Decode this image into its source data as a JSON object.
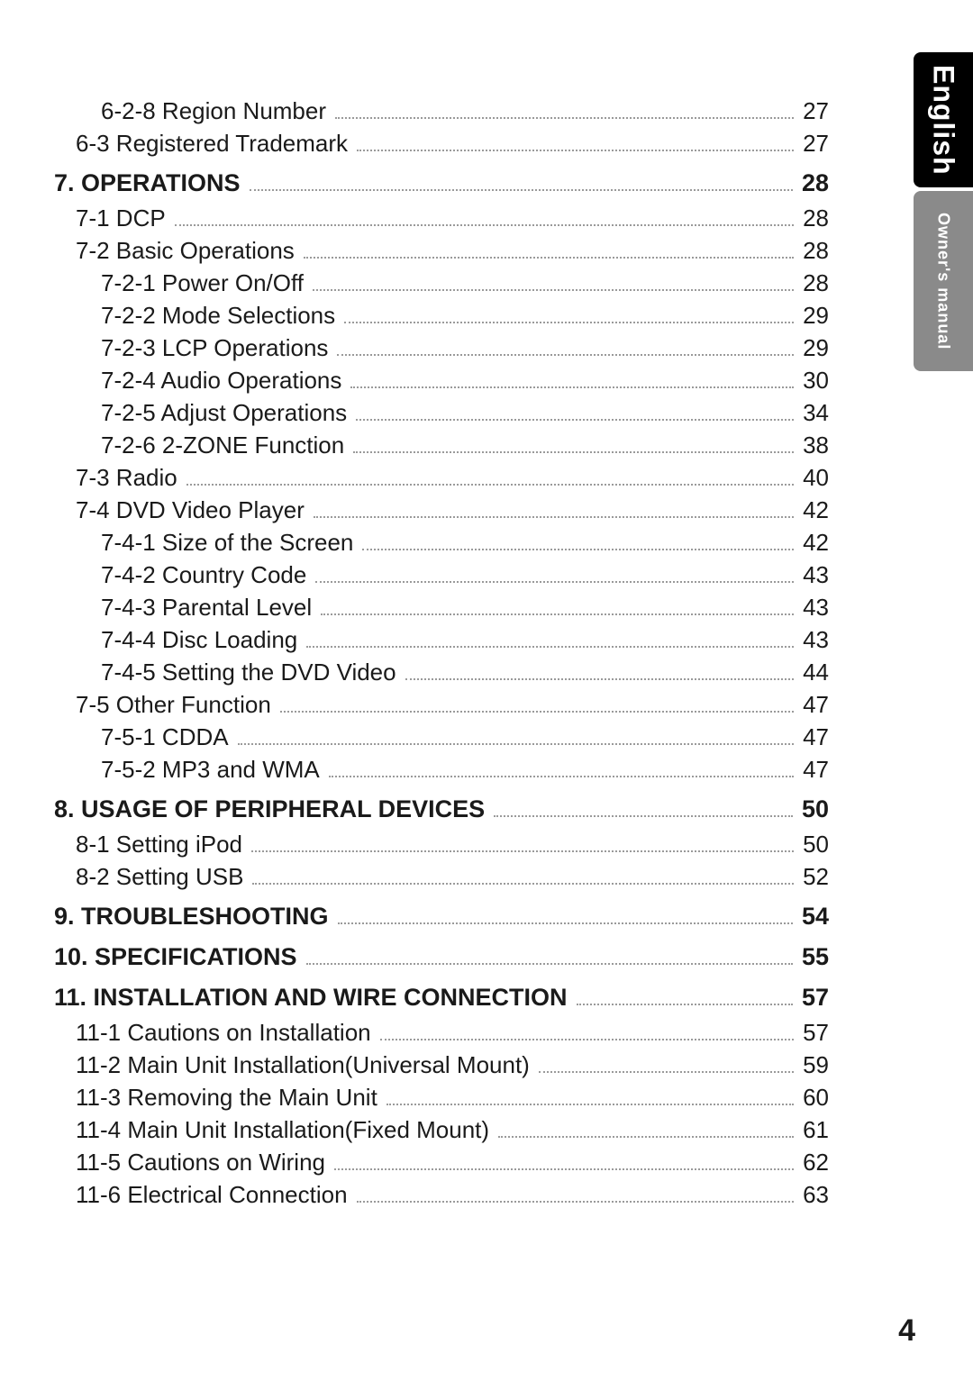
{
  "tabs": {
    "language": "English",
    "owner": "Owner's manual"
  },
  "page_number": "4",
  "toc": [
    {
      "level": 2,
      "label": "6-2-8 Region Number",
      "page": "27"
    },
    {
      "level": 1,
      "label": "6-3 Registered Trademark",
      "page": "27"
    },
    {
      "level": 0,
      "label": "7. OPERATIONS",
      "page": "28"
    },
    {
      "level": 1,
      "label": "7-1 DCP",
      "page": "28"
    },
    {
      "level": 1,
      "label": "7-2 Basic Operations",
      "page": "28"
    },
    {
      "level": 2,
      "label": "7-2-1 Power On/Off",
      "page": "28"
    },
    {
      "level": 2,
      "label": "7-2-2 Mode Selections",
      "page": "29"
    },
    {
      "level": 2,
      "label": "7-2-3 LCP Operations",
      "page": "29"
    },
    {
      "level": 2,
      "label": "7-2-4 Audio Operations",
      "page": "30"
    },
    {
      "level": 2,
      "label": "7-2-5 Adjust Operations",
      "page": "34"
    },
    {
      "level": 2,
      "label": "7-2-6 2-ZONE Function",
      "page": "38"
    },
    {
      "level": 1,
      "label": "7-3 Radio",
      "page": "40"
    },
    {
      "level": 1,
      "label": "7-4 DVD Video Player",
      "page": "42"
    },
    {
      "level": 2,
      "label": "7-4-1 Size of the Screen",
      "page": "42"
    },
    {
      "level": 2,
      "label": "7-4-2 Country Code",
      "page": "43"
    },
    {
      "level": 2,
      "label": "7-4-3 Parental Level",
      "page": "43"
    },
    {
      "level": 2,
      "label": "7-4-4 Disc Loading",
      "page": "43"
    },
    {
      "level": 2,
      "label": "7-4-5 Setting the DVD Video",
      "page": "44"
    },
    {
      "level": 1,
      "label": "7-5 Other Function",
      "page": "47"
    },
    {
      "level": 2,
      "label": "7-5-1 CDDA",
      "page": "47"
    },
    {
      "level": 2,
      "label": "7-5-2 MP3 and WMA",
      "page": "47"
    },
    {
      "level": 0,
      "label": "8. USAGE OF PERIPHERAL DEVICES",
      "page": "50"
    },
    {
      "level": 1,
      "label": "8-1 Setting iPod",
      "page": "50"
    },
    {
      "level": 1,
      "label": "8-2 Setting USB",
      "page": "52"
    },
    {
      "level": 0,
      "label": "9. TROUBLESHOOTING",
      "page": "54"
    },
    {
      "level": 0,
      "label": "10. SPECIFICATIONS",
      "page": "55"
    },
    {
      "level": 0,
      "label": "11. INSTALLATION AND WIRE CONNECTION",
      "page": "57"
    },
    {
      "level": 1,
      "label": "11-1 Cautions on Installation",
      "page": "57"
    },
    {
      "level": 1,
      "label": "11-2 Main Unit Installation(Universal Mount)",
      "page": "59"
    },
    {
      "level": 1,
      "label": "11-3 Removing the Main Unit",
      "page": "60"
    },
    {
      "level": 1,
      "label": "11-4 Main Unit Installation(Fixed Mount)",
      "page": "61"
    },
    {
      "level": 1,
      "label": "11-5 Cautions on Wiring",
      "page": "62"
    },
    {
      "level": 1,
      "label": "11-6 Electrical Connection",
      "page": "63"
    }
  ]
}
